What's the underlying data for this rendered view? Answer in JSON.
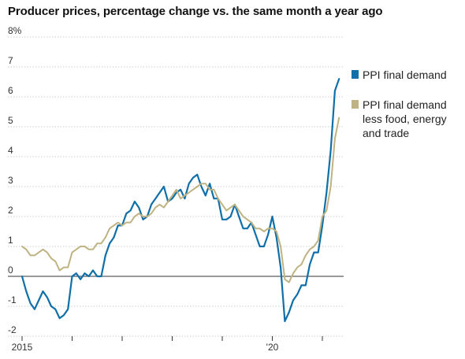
{
  "title": "Producer prices, percentage change vs. the same month a year ago",
  "chart_data": {
    "type": "line",
    "title": "Producer prices, percentage change vs. the same month a year ago",
    "ylim": [
      -2,
      8
    ],
    "y_ticks": [
      "8%",
      "7",
      "6",
      "5",
      "4",
      "3",
      "2",
      "1",
      "0",
      "-1",
      "-2"
    ],
    "x_ticks": [
      {
        "label": "2015",
        "year": 2015
      },
      {
        "label": "",
        "year": 2016
      },
      {
        "label": "",
        "year": 2017
      },
      {
        "label": "",
        "year": 2018
      },
      {
        "label": "",
        "year": 2019
      },
      {
        "label": "'20",
        "year": 2020
      },
      {
        "label": "",
        "year": 2021
      }
    ],
    "x_range": [
      "2015-01",
      "2021-05"
    ],
    "grid": "horizontal",
    "legend_position": "right",
    "series": [
      {
        "name": "PPI final demand",
        "color": "#0f6fa8",
        "x": [
          "2015-01",
          "2015-02",
          "2015-03",
          "2015-04",
          "2015-05",
          "2015-06",
          "2015-07",
          "2015-08",
          "2015-09",
          "2015-10",
          "2015-11",
          "2015-12",
          "2016-01",
          "2016-02",
          "2016-03",
          "2016-04",
          "2016-05",
          "2016-06",
          "2016-07",
          "2016-08",
          "2016-09",
          "2016-10",
          "2016-11",
          "2016-12",
          "2017-01",
          "2017-02",
          "2017-03",
          "2017-04",
          "2017-05",
          "2017-06",
          "2017-07",
          "2017-08",
          "2017-09",
          "2017-10",
          "2017-11",
          "2017-12",
          "2018-01",
          "2018-02",
          "2018-03",
          "2018-04",
          "2018-05",
          "2018-06",
          "2018-07",
          "2018-08",
          "2018-09",
          "2018-10",
          "2018-11",
          "2018-12",
          "2019-01",
          "2019-02",
          "2019-03",
          "2019-04",
          "2019-05",
          "2019-06",
          "2019-07",
          "2019-08",
          "2019-09",
          "2019-10",
          "2019-11",
          "2019-12",
          "2020-01",
          "2020-02",
          "2020-03",
          "2020-04",
          "2020-05",
          "2020-06",
          "2020-07",
          "2020-08",
          "2020-09",
          "2020-10",
          "2020-11",
          "2020-12",
          "2021-01",
          "2021-02",
          "2021-03",
          "2021-04",
          "2021-05"
        ],
        "values": [
          0.0,
          -0.5,
          -0.9,
          -1.1,
          -0.8,
          -0.5,
          -0.7,
          -1.0,
          -1.1,
          -1.4,
          -1.3,
          -1.1,
          0.0,
          0.1,
          -0.1,
          0.1,
          0.0,
          0.2,
          0.0,
          0.0,
          0.7,
          1.1,
          1.3,
          1.7,
          1.7,
          2.1,
          2.2,
          2.5,
          2.3,
          1.9,
          2.0,
          2.4,
          2.6,
          2.8,
          3.0,
          2.5,
          2.6,
          2.8,
          2.9,
          2.6,
          3.1,
          3.3,
          3.4,
          3.0,
          2.7,
          3.1,
          2.6,
          2.6,
          1.9,
          1.9,
          2.0,
          2.4,
          2.0,
          1.6,
          1.6,
          1.8,
          1.4,
          1.0,
          1.0,
          1.4,
          2.0,
          1.3,
          0.3,
          -1.5,
          -1.2,
          -0.8,
          -0.6,
          -0.3,
          -0.3,
          0.4,
          0.8,
          0.8,
          1.7,
          2.8,
          4.2,
          6.2,
          6.6
        ]
      },
      {
        "name": "PPI final demand less food, energy and trade",
        "color": "#bfb383",
        "x": [
          "2015-01",
          "2015-02",
          "2015-03",
          "2015-04",
          "2015-05",
          "2015-06",
          "2015-07",
          "2015-08",
          "2015-09",
          "2015-10",
          "2015-11",
          "2015-12",
          "2016-01",
          "2016-02",
          "2016-03",
          "2016-04",
          "2016-05",
          "2016-06",
          "2016-07",
          "2016-08",
          "2016-09",
          "2016-10",
          "2016-11",
          "2016-12",
          "2017-01",
          "2017-02",
          "2017-03",
          "2017-04",
          "2017-05",
          "2017-06",
          "2017-07",
          "2017-08",
          "2017-09",
          "2017-10",
          "2017-11",
          "2017-12",
          "2018-01",
          "2018-02",
          "2018-03",
          "2018-04",
          "2018-05",
          "2018-06",
          "2018-07",
          "2018-08",
          "2018-09",
          "2018-10",
          "2018-11",
          "2018-12",
          "2019-01",
          "2019-02",
          "2019-03",
          "2019-04",
          "2019-05",
          "2019-06",
          "2019-07",
          "2019-08",
          "2019-09",
          "2019-10",
          "2019-11",
          "2019-12",
          "2020-01",
          "2020-02",
          "2020-03",
          "2020-04",
          "2020-05",
          "2020-06",
          "2020-07",
          "2020-08",
          "2020-09",
          "2020-10",
          "2020-11",
          "2020-12",
          "2021-01",
          "2021-02",
          "2021-03",
          "2021-04",
          "2021-05"
        ],
        "values": [
          1.0,
          0.9,
          0.7,
          0.7,
          0.8,
          0.9,
          0.8,
          0.6,
          0.5,
          0.2,
          0.3,
          0.3,
          0.8,
          0.9,
          1.0,
          1.0,
          0.9,
          0.9,
          1.1,
          1.1,
          1.3,
          1.6,
          1.7,
          1.8,
          1.7,
          1.8,
          1.8,
          2.0,
          2.1,
          2.0,
          2.0,
          2.1,
          2.3,
          2.4,
          2.3,
          2.5,
          2.7,
          2.9,
          2.6,
          2.7,
          2.8,
          2.9,
          3.0,
          3.1,
          3.1,
          2.9,
          2.9,
          2.6,
          2.4,
          2.2,
          2.3,
          2.4,
          2.2,
          2.0,
          1.9,
          1.8,
          1.6,
          1.6,
          1.5,
          1.6,
          1.6,
          1.5,
          1.0,
          -0.1,
          -0.2,
          0.1,
          0.3,
          0.4,
          0.7,
          0.9,
          1.0,
          1.2,
          2.0,
          2.2,
          3.0,
          4.6,
          5.3
        ]
      }
    ]
  }
}
